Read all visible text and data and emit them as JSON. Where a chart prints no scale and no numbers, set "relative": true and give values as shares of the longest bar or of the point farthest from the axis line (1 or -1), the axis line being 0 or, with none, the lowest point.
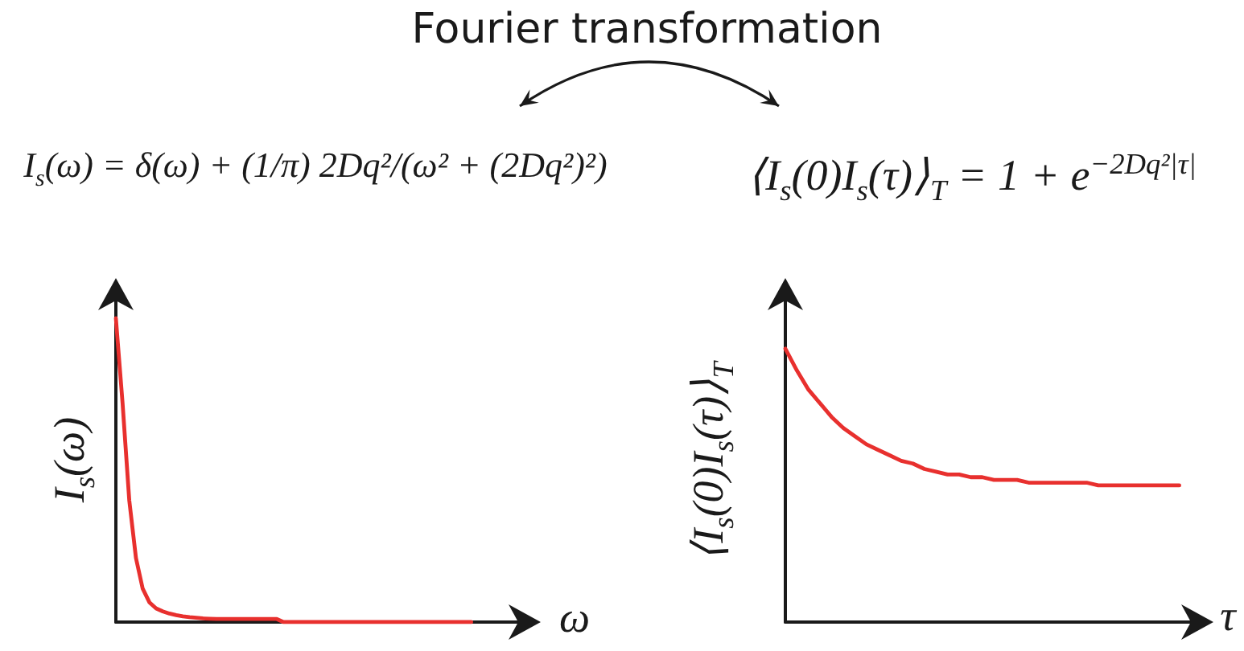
{
  "chart_data": [
    {
      "type": "line",
      "annotations": [
        "Fourier transformation",
        "I$_{s}$(ω) = δ(ω) + (1/π) 2Dq²/(ω² + (2Dq²)²)"
      ],
      "xlabel": "ω",
      "ylabel": "I$_{s}$(ω)",
      "relative": true,
      "marker": "none",
      "line_style": "solid",
      "categories": [
        null,
        null,
        null,
        null,
        null,
        null,
        null,
        null,
        null,
        null,
        null,
        null,
        null,
        null,
        null,
        null,
        null,
        null,
        null,
        null,
        null,
        null,
        null,
        null,
        null,
        null,
        null,
        null,
        null,
        null,
        null,
        null,
        null,
        null,
        null,
        null,
        null,
        null,
        null,
        null,
        null,
        null,
        null,
        null,
        null,
        null,
        null,
        null,
        null,
        null,
        null,
        null,
        null,
        null,
        null,
        null,
        null,
        null,
        null,
        null,
        null
      ],
      "series": [
        {
          "color": "#e8302e",
          "values": [
            1.0,
            0.72,
            0.4,
            0.21,
            0.11,
            0.065,
            0.045,
            0.035,
            0.028,
            0.023,
            0.019,
            0.016,
            0.014,
            0.012,
            0.011,
            0.01,
            0.01,
            0.01,
            0.01,
            0.01,
            0.01,
            0.01,
            0.01,
            0.01,
            0.01,
            0.0,
            0.0,
            0.0,
            0.0,
            0.0,
            0.0,
            0.0,
            0.0,
            0.0,
            0.0,
            0.0,
            0.0,
            0.0,
            0.0,
            0.0,
            0.0,
            0.0,
            0.0,
            0.0,
            0.0,
            0.0,
            0.0,
            0.0,
            0.0,
            0.0,
            0.0,
            0.0,
            0.0,
            0.0,
            null,
            null,
            null,
            null,
            null,
            null,
            null
          ]
        }
      ]
    },
    {
      "type": "line",
      "annotations": [
        "⟨I$_{s}$(0)I$_{s}$(τ)⟩$_{T}$ = 1 + e$^{−2Dq²|τ|}$"
      ],
      "xlabel": "τ",
      "ylabel": "⟨I$_{s}$(0)I$_{s}$(τ)⟩$_{T}$",
      "relative": true,
      "marker": "none",
      "line_style": "solid",
      "categories": [
        null,
        null,
        null,
        null,
        null,
        null,
        null,
        null,
        null,
        null,
        null,
        null,
        null,
        null,
        null,
        null,
        null,
        null,
        null,
        null,
        null,
        null,
        null,
        null,
        null,
        null,
        null,
        null,
        null,
        null,
        null,
        null,
        null,
        null,
        null,
        null
      ],
      "series": [
        {
          "color": "#e8302e",
          "values": [
            1.0,
            0.92,
            0.85,
            0.8,
            0.75,
            0.71,
            0.68,
            0.65,
            0.63,
            0.61,
            0.59,
            0.58,
            0.56,
            0.55,
            0.54,
            0.54,
            0.53,
            0.53,
            0.52,
            0.52,
            0.52,
            0.51,
            0.51,
            0.51,
            0.51,
            0.51,
            0.51,
            0.5,
            0.5,
            0.5,
            0.5,
            0.5,
            0.5,
            0.5,
            0.5,
            null
          ]
        }
      ]
    }
  ]
}
